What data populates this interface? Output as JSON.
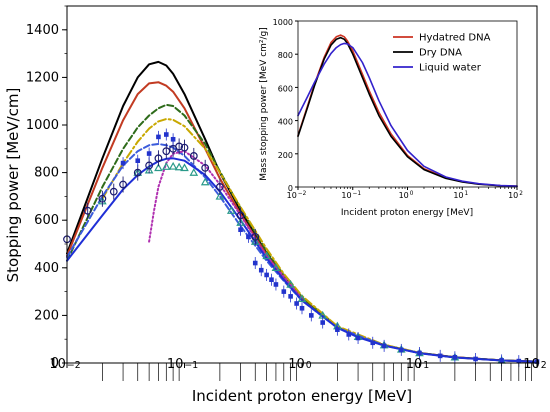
{
  "chart_data": [
    {
      "type": "line",
      "title": "",
      "xlabel": "Incident proton energy [MeV]",
      "ylabel": "Stopping power [MeV/cm]",
      "xscale": "log",
      "xlim": [
        0.01,
        100
      ],
      "ylim": [
        0,
        1500
      ],
      "x_ticks": [
        {
          "value": 0.01,
          "base": "10",
          "exp": "−2"
        },
        {
          "value": 0.1,
          "base": "10",
          "exp": "−1"
        },
        {
          "value": 1,
          "base": "10",
          "exp": "0"
        },
        {
          "value": 10,
          "base": "10",
          "exp": "1"
        },
        {
          "value": 100,
          "base": "10",
          "exp": "2"
        }
      ],
      "y_ticks": [
        "0",
        "200",
        "400",
        "600",
        "800",
        "1000",
        "1200",
        "1400"
      ],
      "grid": false,
      "legend": "none",
      "series": [
        {
          "color": "#000000",
          "style": "solid",
          "x": [
            0.01,
            0.02,
            0.03,
            0.04,
            0.05,
            0.06,
            0.07,
            0.08,
            0.1,
            0.15,
            0.2,
            0.3,
            0.5,
            0.7,
            1,
            2,
            3,
            5,
            10,
            20,
            50,
            100
          ],
          "y": [
            460,
            860,
            1080,
            1200,
            1255,
            1265,
            1250,
            1215,
            1130,
            940,
            800,
            640,
            460,
            360,
            270,
            150,
            110,
            75,
            42,
            24,
            11,
            6
          ]
        },
        {
          "color": "#c23b22",
          "style": "solid",
          "x": [
            0.01,
            0.02,
            0.03,
            0.04,
            0.05,
            0.06,
            0.07,
            0.08,
            0.1,
            0.15,
            0.2,
            0.3,
            0.5,
            0.7,
            1,
            2,
            3,
            5,
            10,
            20,
            50,
            100
          ],
          "y": [
            450,
            820,
            1020,
            1130,
            1175,
            1180,
            1165,
            1140,
            1070,
            900,
            775,
            625,
            455,
            355,
            268,
            150,
            110,
            75,
            42,
            24,
            11,
            6
          ]
        },
        {
          "color": "#2e6b1a",
          "style": "dashed",
          "x": [
            0.01,
            0.02,
            0.03,
            0.04,
            0.05,
            0.06,
            0.07,
            0.08,
            0.1,
            0.15,
            0.2,
            0.3,
            0.5,
            0.7,
            1,
            2,
            3,
            5,
            10,
            20,
            50,
            100
          ],
          "y": [
            430,
            740,
            900,
            990,
            1040,
            1070,
            1085,
            1080,
            1040,
            920,
            805,
            650,
            470,
            368,
            276,
            152,
            111,
            76,
            42,
            24,
            11,
            6
          ]
        },
        {
          "color": "#c8a800",
          "style": "dashdot",
          "x": [
            0.02,
            0.03,
            0.04,
            0.05,
            0.06,
            0.07,
            0.08,
            0.1,
            0.15,
            0.2,
            0.3,
            0.5,
            0.7,
            1,
            2,
            5,
            10
          ],
          "y": [
            690,
            840,
            930,
            985,
            1015,
            1025,
            1022,
            995,
            900,
            800,
            655,
            480,
            375,
            282,
            154,
            77,
            43
          ]
        },
        {
          "color": "#3b5bdb",
          "style": "dashed",
          "x": [
            0.01,
            0.02,
            0.03,
            0.04,
            0.05,
            0.06,
            0.07,
            0.08,
            0.1,
            0.15,
            0.2,
            0.3,
            0.5,
            0.7,
            1,
            2,
            5,
            10
          ],
          "y": [
            445,
            700,
            830,
            890,
            915,
            920,
            915,
            905,
            870,
            780,
            700,
            575,
            430,
            345,
            262,
            148,
            74,
            42
          ]
        },
        {
          "color": "#b030b0",
          "style": "dotted",
          "x": [
            0.05,
            0.055,
            0.06,
            0.07,
            0.08,
            0.1,
            0.15,
            0.2,
            0.3,
            0.5,
            1
          ],
          "y": [
            510,
            640,
            740,
            840,
            880,
            890,
            830,
            750,
            620,
            450,
            270
          ]
        },
        {
          "color": "#1f2fd6",
          "style": "solid",
          "x": [
            0.01,
            0.02,
            0.03,
            0.04,
            0.05,
            0.06,
            0.07,
            0.08,
            0.1,
            0.15,
            0.2,
            0.3,
            0.5,
            0.7,
            1,
            2,
            3,
            5,
            10,
            20,
            50,
            100
          ],
          "y": [
            430,
            620,
            730,
            790,
            825,
            848,
            858,
            860,
            850,
            790,
            720,
            600,
            440,
            350,
            263,
            148,
            108,
            73,
            41,
            23,
            10.5,
            6
          ]
        }
      ],
      "markers": [
        {
          "shape": "triangle",
          "color": "#2a9a8a",
          "x": [
            0.02,
            0.04,
            0.05,
            0.06,
            0.07,
            0.08,
            0.09,
            0.1,
            0.12,
            0.15,
            0.2,
            0.25,
            0.3,
            0.4,
            0.5,
            0.6,
            0.8,
            1,
            1.5,
            2,
            3,
            5,
            7,
            10,
            20,
            50
          ],
          "y": [
            680,
            800,
            810,
            820,
            825,
            826,
            823,
            820,
            800,
            760,
            700,
            640,
            590,
            510,
            450,
            400,
            330,
            270,
            200,
            155,
            110,
            75,
            57,
            42,
            24,
            11
          ]
        },
        {
          "shape": "circle",
          "color": "#1a1a70",
          "x": [
            0.01,
            0.015,
            0.02,
            0.025,
            0.03,
            0.04,
            0.05,
            0.06,
            0.07,
            0.08,
            0.09,
            0.1,
            0.12,
            0.15,
            0.2,
            0.3,
            0.4
          ],
          "y": [
            520,
            640,
            690,
            720,
            750,
            800,
            830,
            860,
            890,
            900,
            910,
            905,
            870,
            820,
            740,
            620,
            530
          ]
        },
        {
          "shape": "square",
          "color": "#2233cc",
          "x": [
            0.03,
            0.04,
            0.05,
            0.06,
            0.07,
            0.08,
            0.3,
            0.35,
            0.4,
            0.45,
            0.5,
            0.55,
            0.6,
            0.7,
            0.8,
            0.9,
            1,
            1.2,
            1.5,
            2,
            2.5,
            3,
            4,
            5,
            7,
            10,
            15,
            20,
            30,
            50,
            70,
            100
          ],
          "y": [
            840,
            850,
            880,
            950,
            960,
            940,
            560,
            530,
            420,
            390,
            370,
            350,
            330,
            300,
            280,
            250,
            230,
            200,
            170,
            140,
            120,
            105,
            85,
            72,
            55,
            42,
            30,
            24,
            17,
            11,
            8,
            6
          ]
        }
      ]
    },
    {
      "type": "line",
      "title": "",
      "xlabel": "Incident proton energy [MeV]",
      "ylabel": "Mass stopping power [MeV cm²/g]",
      "xscale": "log",
      "xlim": [
        0.01,
        100
      ],
      "ylim": [
        0,
        1000
      ],
      "x_ticks": [
        {
          "value": 0.01,
          "base": "10",
          "exp": "−2"
        },
        {
          "value": 0.1,
          "base": "10",
          "exp": "−1"
        },
        {
          "value": 1,
          "base": "10",
          "exp": "0"
        },
        {
          "value": 10,
          "base": "10",
          "exp": "1"
        },
        {
          "value": 100,
          "base": "10",
          "exp": "2"
        }
      ],
      "y_ticks": [
        "0",
        "200",
        "400",
        "600",
        "800",
        "1000"
      ],
      "legend": "top-right",
      "series": [
        {
          "name": "Hydatred DNA",
          "color": "#cc3322",
          "x": [
            0.01,
            0.015,
            0.02,
            0.03,
            0.04,
            0.05,
            0.06,
            0.07,
            0.08,
            0.1,
            0.15,
            0.2,
            0.3,
            0.5,
            1,
            2,
            5,
            10,
            20,
            50,
            100
          ],
          "y": [
            310,
            490,
            620,
            780,
            870,
            905,
            915,
            905,
            880,
            820,
            680,
            580,
            450,
            320,
            190,
            110,
            55,
            32,
            18,
            8,
            5
          ]
        },
        {
          "name": "Dry DNA",
          "color": "#000000",
          "x": [
            0.01,
            0.015,
            0.02,
            0.03,
            0.04,
            0.05,
            0.06,
            0.07,
            0.08,
            0.1,
            0.15,
            0.2,
            0.3,
            0.5,
            1,
            2,
            5,
            10,
            20,
            50,
            100
          ],
          "y": [
            305,
            480,
            610,
            770,
            855,
            890,
            900,
            890,
            865,
            800,
            660,
            560,
            430,
            305,
            182,
            105,
            52,
            30,
            17,
            8,
            5
          ]
        },
        {
          "name": "Liquid water",
          "color": "#3322cc",
          "x": [
            0.01,
            0.015,
            0.02,
            0.03,
            0.04,
            0.05,
            0.06,
            0.07,
            0.08,
            0.1,
            0.15,
            0.2,
            0.3,
            0.5,
            1,
            2,
            5,
            10,
            20,
            50,
            100
          ],
          "y": [
            430,
            545,
            630,
            740,
            805,
            840,
            858,
            865,
            862,
            840,
            750,
            660,
            520,
            370,
            220,
            125,
            60,
            35,
            20,
            9,
            5
          ]
        }
      ]
    }
  ]
}
